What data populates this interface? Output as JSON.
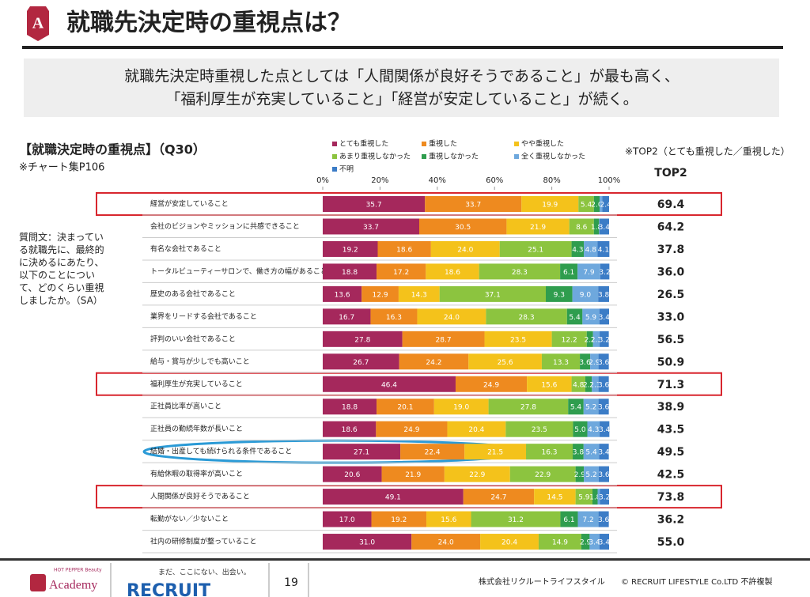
{
  "header": {
    "badge": "A",
    "title": "就職先決定時の重視点は？",
    "summary": [
      "就職先決定時重視した点としては「人間関係が良好そうであること」が最も高く、",
      "「福利厚生が充実していること」「経営が安定していること」が続く。"
    ]
  },
  "question": "質問文：決まっている就職先に、最終的に決めるにあたり、以下のことについて、どのくらい重視しましたか。（SA）",
  "chart_data": {
    "type": "stacked-bar-horizontal",
    "title": "【就職決定時の重視点】（Q30）",
    "subtitle": "※チャート集P106",
    "categories": [
      "経営が安定していること",
      "会社のビジョンやミッションに共感できること",
      "有名な会社であること",
      "トータルビューティーサロンで、働き方の幅があること",
      "歴史のある会社であること",
      "業界をリードする会社であること",
      "評判のいい会社であること",
      "給与・賞与が少しでも高いこと",
      "福利厚生が充実していること",
      "正社員比率が高いこと",
      "正社員の勤続年数が長いこと",
      "結婚・出産しても続けられる条件であること",
      "有給休暇の取得率が高いこと",
      "人間関係が良好そうであること",
      "転勤がない／少ないこと",
      "社内の研修制度が整っていること"
    ],
    "xlim": [
      0,
      100
    ],
    "xticks": [
      {
        "value": 0,
        "label": "0%"
      },
      {
        "value": 20,
        "label": "20%"
      },
      {
        "value": 40,
        "label": "40%"
      },
      {
        "value": 60,
        "label": "60%"
      },
      {
        "value": 80,
        "label": "80%"
      },
      {
        "value": 100,
        "label": "100%"
      }
    ],
    "series": [
      {
        "name": "とても重視した",
        "color": "#a5285c",
        "values": [
          35.7,
          33.7,
          19.2,
          18.8,
          13.6,
          16.7,
          27.8,
          26.7,
          46.4,
          18.8,
          18.6,
          27.1,
          20.6,
          49.1,
          17.0,
          31.0
        ],
        "value_labels": [
          "35.7",
          "33.7",
          "19.2",
          "18.8",
          "13.6",
          "16.7",
          "27.8",
          "26.7",
          "46.4",
          "18.8",
          "18.6",
          "27.1",
          "20.6",
          "49.1",
          "17.0",
          "31.0"
        ]
      },
      {
        "name": "重視した",
        "color": "#ee8a1f",
        "values": [
          33.7,
          30.5,
          18.6,
          17.2,
          12.9,
          16.3,
          28.7,
          24.2,
          24.9,
          20.1,
          24.9,
          22.4,
          21.9,
          24.7,
          19.2,
          24.0
        ],
        "value_labels": [
          "33.7",
          "30.5",
          "18.6",
          "17.2",
          "12.9",
          "16.3",
          "28.7",
          "24.2",
          "24.9",
          "20.1",
          "24.9",
          "22.4",
          "21.9",
          "24.7",
          "19.2",
          "24.0"
        ]
      },
      {
        "name": "やや重視した",
        "color": "#f4c21b",
        "values": [
          19.9,
          21.9,
          24.0,
          18.6,
          14.3,
          24.0,
          23.5,
          25.6,
          15.6,
          19.0,
          20.4,
          21.5,
          22.9,
          14.5,
          15.6,
          20.4
        ],
        "value_labels": [
          "19.9",
          "21.9",
          "24.0",
          "18.6",
          "14.3",
          "24.0",
          "23.5",
          "25.6",
          "15.6",
          "19.0",
          "20.4",
          "21.5",
          "22.9",
          "14.5",
          "15.6",
          "20.4"
        ]
      },
      {
        "name": "あまり重視しなかった",
        "color": "#8cc43f",
        "values": [
          5.4,
          8.6,
          25.1,
          28.3,
          37.1,
          28.3,
          12.2,
          13.3,
          4.8,
          27.8,
          23.5,
          16.3,
          22.9,
          5.9,
          31.2,
          14.9
        ],
        "value_labels": [
          "5.4",
          "8.6",
          "25.1",
          "28.3",
          "37.1",
          "28.3",
          "12.2",
          "13.3",
          "4.8",
          "27.8",
          "23.5",
          "16.3",
          "22.9",
          "5.9",
          "31.2",
          "14.9"
        ]
      },
      {
        "name": "重視しなかった",
        "color": "#2f9d4e",
        "values": [
          2.0,
          1.8,
          4.3,
          6.1,
          9.3,
          5.4,
          2.2,
          3.6,
          2.3,
          5.4,
          5.0,
          3.8,
          2.9,
          1.8,
          6.1,
          2.9
        ],
        "value_labels": [
          "2.0",
          "1.8",
          "4.3",
          "6.1",
          "9.3",
          "5.4",
          "2.2",
          "3.6",
          "2.3",
          "5.4",
          "5.0",
          "3.8",
          "2.9",
          "1.8",
          "6.1",
          "2.9"
        ]
      },
      {
        "name": "全く重視しなかった",
        "color": "#6ea8dd",
        "values": [
          0.9,
          0.1,
          4.8,
          7.9,
          9.0,
          5.9,
          2.3,
          2.9,
          2.3,
          5.2,
          4.3,
          5.4,
          5.2,
          0.8,
          7.2,
          3.4
        ],
        "value_labels": [
          "0.9",
          "0.1",
          "4.8",
          "7.9",
          "9.0",
          "5.9",
          "2.3",
          "2.9",
          "2.3",
          "5.2",
          "4.3",
          "5.4",
          "5.2",
          "0.8",
          "7.2",
          "3.4"
        ]
      },
      {
        "name": "不明",
        "color": "#3b7cc6",
        "values": [
          2.4,
          3.4,
          4.1,
          3.2,
          3.8,
          3.4,
          3.2,
          3.6,
          3.6,
          3.6,
          3.4,
          3.4,
          3.6,
          3.2,
          3.6,
          3.4
        ],
        "value_labels": [
          "2.4",
          "3.4",
          "4.1",
          "3.2",
          "3.8",
          "3.4",
          "3.2",
          "3.6",
          "3.6",
          "3.6",
          "3.4",
          "3.4",
          "3.6",
          "3.2",
          "3.6",
          "3.4"
        ]
      }
    ],
    "top2": {
      "note": "※TOP2（とても重視した／重視した）",
      "header": "TOP2",
      "values": [
        69.4,
        64.2,
        37.8,
        36.0,
        26.5,
        33.0,
        56.5,
        50.9,
        71.3,
        38.9,
        43.5,
        49.5,
        42.5,
        73.8,
        36.2,
        55.0
      ],
      "value_labels": [
        "69.4",
        "64.2",
        "37.8",
        "36.0",
        "26.5",
        "33.0",
        "56.5",
        "50.9",
        "71.3",
        "38.9",
        "43.5",
        "49.5",
        "42.5",
        "73.8",
        "36.2",
        "55.0"
      ]
    }
  },
  "footer": {
    "brand_small": "HOT PEPPER Beauty",
    "brand": "Academy",
    "tagline": "まだ、ここにない、出会い。",
    "logo": "RECRUIT",
    "page": "19",
    "company": "株式会社リクルートライフスタイル",
    "copyright": "© RECRUIT LIFESTYLE Co.LTD 不許複製"
  }
}
